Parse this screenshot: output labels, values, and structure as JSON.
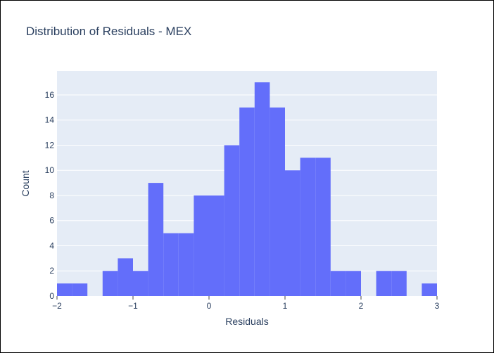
{
  "chart_data": {
    "type": "bar",
    "title": "Distribution of Residuals - MEX",
    "xlabel": "Residuals",
    "ylabel": "Count",
    "bin_width": 0.2,
    "bin_starts": [
      -2.0,
      -1.8,
      -1.6,
      -1.4,
      -1.2,
      -1.0,
      -0.8,
      -0.6,
      -0.4,
      -0.2,
      0.0,
      0.2,
      0.4,
      0.6,
      0.8,
      1.0,
      1.2,
      1.4,
      1.6,
      1.8,
      2.0,
      2.2,
      2.4,
      2.6,
      2.8
    ],
    "values": [
      1,
      1,
      0,
      2,
      3,
      2,
      9,
      5,
      5,
      8,
      8,
      12,
      15,
      17,
      15,
      10,
      11,
      11,
      2,
      2,
      0,
      2,
      2,
      0,
      1
    ],
    "xlim": [
      -2,
      3
    ],
    "ylim": [
      0,
      17.9
    ],
    "xticks": [
      -2,
      -1,
      0,
      1,
      2,
      3
    ],
    "xtick_labels": [
      "−2",
      "−1",
      "0",
      "1",
      "2",
      "3"
    ],
    "yticks": [
      0,
      2,
      4,
      6,
      8,
      10,
      12,
      14,
      16
    ],
    "ytick_labels": [
      "0",
      "2",
      "4",
      "6",
      "8",
      "10",
      "12",
      "14",
      "16"
    ],
    "grid": true,
    "bar_color": "#636efa",
    "plot_bg": "#e5ecf6",
    "grid_color": "#ffffff",
    "text_color": "#2a3f5f"
  }
}
